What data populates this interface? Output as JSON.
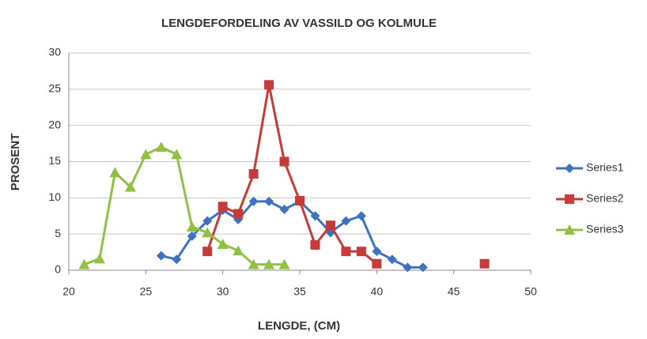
{
  "chart_data": {
    "type": "line",
    "title": "LENGDEFORDELING AV VASSILD OG KOLMULE",
    "xlabel": "LENGDE, (CM)",
    "ylabel": "PROSENT",
    "xlim": [
      20,
      50
    ],
    "xticks": [
      20,
      25,
      30,
      35,
      40,
      45,
      50
    ],
    "ylim": [
      0,
      30
    ],
    "yticks": [
      0,
      5,
      10,
      15,
      20,
      25,
      30
    ],
    "grid": true,
    "legend": "right",
    "series": [
      {
        "name": "Series1",
        "color": "#3d72c0",
        "marker": "diamond",
        "x": [
          26,
          27,
          28,
          29,
          30,
          31,
          32,
          33,
          34,
          35,
          36,
          37,
          38,
          39,
          40,
          41,
          42,
          43
        ],
        "values": [
          2,
          1.5,
          4.7,
          6.8,
          8.3,
          7,
          9.5,
          9.5,
          8.4,
          9.5,
          7.5,
          5.2,
          6.8,
          7.5,
          2.6,
          1.5,
          0.4,
          0.4
        ]
      },
      {
        "name": "Series2",
        "color": "#c63a3a",
        "marker": "square",
        "x": [
          29,
          30,
          31,
          32,
          33,
          34,
          35,
          36,
          37,
          38,
          39,
          40,
          41,
          42,
          43,
          44,
          45,
          46,
          47
        ],
        "values": [
          2.6,
          8.8,
          7.8,
          13.3,
          25.6,
          15,
          9.6,
          3.5,
          6.2,
          2.6,
          2.6,
          0.9,
          null,
          null,
          null,
          null,
          null,
          null,
          0.9
        ]
      },
      {
        "name": "Series3",
        "color": "#92c047",
        "marker": "triangle",
        "x": [
          21,
          22,
          23,
          24,
          25,
          26,
          27,
          28,
          29,
          30,
          31,
          32,
          33,
          34
        ],
        "values": [
          0.8,
          1.6,
          13.5,
          11.5,
          16,
          17,
          16,
          6,
          5.2,
          3.6,
          2.7,
          0.8,
          0.8,
          0.8
        ]
      }
    ]
  }
}
